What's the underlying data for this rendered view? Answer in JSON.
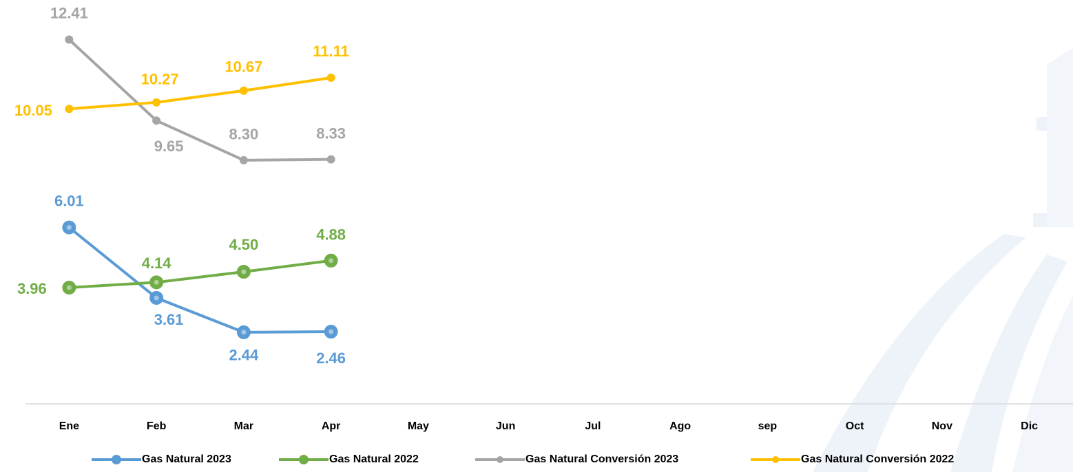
{
  "chart_data": {
    "type": "line",
    "categories": [
      "Ene",
      "Feb",
      "Mar",
      "Apr",
      "May",
      "Jun",
      "Jul",
      "Ago",
      "sep",
      "Oct",
      "Nov",
      "Dic"
    ],
    "ylim": [
      0,
      13.5
    ],
    "series": [
      {
        "name": "Gas Natural 2023",
        "color": "#5b9bd5",
        "values": [
          6.01,
          3.61,
          2.44,
          2.46,
          null,
          null,
          null,
          null,
          null,
          null,
          null,
          null
        ],
        "value_labels": [
          "6.01",
          "3.61",
          "2.44",
          "2.46",
          null,
          null,
          null,
          null,
          null,
          null,
          null,
          null
        ]
      },
      {
        "name": "Gas Natural 2022",
        "color": "#70ad47",
        "values": [
          3.96,
          4.14,
          4.5,
          4.88,
          null,
          null,
          null,
          null,
          null,
          null,
          null,
          null
        ],
        "value_labels": [
          "3.96",
          "4.14",
          "4.50",
          "4.88",
          null,
          null,
          null,
          null,
          null,
          null,
          null,
          null
        ]
      },
      {
        "name": "Gas Natural Conversión 2023",
        "color": "#a5a5a5",
        "values": [
          12.41,
          9.65,
          8.3,
          8.33,
          null,
          null,
          null,
          null,
          null,
          null,
          null,
          null
        ],
        "value_labels": [
          "12.41",
          "9.65",
          "8.30",
          "8.33",
          null,
          null,
          null,
          null,
          null,
          null,
          null,
          null
        ]
      },
      {
        "name": "Gas Natural Conversión 2022",
        "color": "#ffc000",
        "values": [
          10.05,
          10.27,
          10.67,
          11.11,
          null,
          null,
          null,
          null,
          null,
          null,
          null,
          null
        ],
        "value_labels": [
          "10.05",
          "10.27",
          "10.67",
          "11.11",
          null,
          null,
          null,
          null,
          null,
          null,
          null,
          null
        ]
      }
    ]
  }
}
